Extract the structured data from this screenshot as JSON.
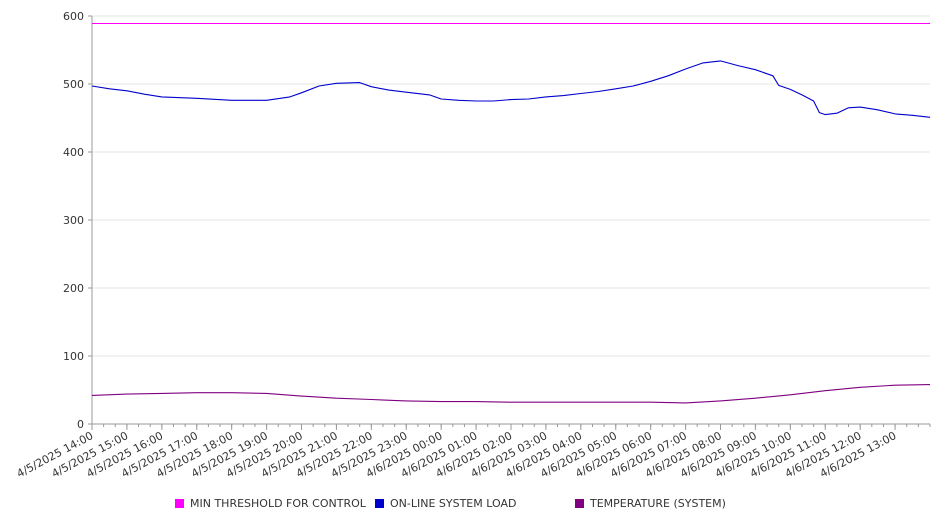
{
  "chart_data": {
    "type": "line",
    "x_tick_labels": [
      "4/5/2025 14:00",
      "4/5/2025 15:00",
      "4/5/2025 16:00",
      "4/5/2025 17:00",
      "4/5/2025 18:00",
      "4/5/2025 19:00",
      "4/5/2025 20:00",
      "4/5/2025 21:00",
      "4/5/2025 22:00",
      "4/5/2025 23:00",
      "4/6/2025 00:00",
      "4/6/2025 01:00",
      "4/6/2025 02:00",
      "4/6/2025 03:00",
      "4/6/2025 04:00",
      "4/6/2025 05:00",
      "4/6/2025 06:00",
      "4/6/2025 07:00",
      "4/6/2025 08:00",
      "4/6/2025 09:00",
      "4/6/2025 10:00",
      "4/6/2025 11:00",
      "4/6/2025 12:00",
      "4/6/2025 13:00"
    ],
    "x_range": [
      "4/5/2025 14:00",
      "4/6/2025 14:00"
    ],
    "ylim": [
      0,
      600
    ],
    "y_ticks": [
      0,
      100,
      200,
      300,
      400,
      500,
      600
    ],
    "grid": "horizontal",
    "legend_position": "bottom",
    "series": [
      {
        "name": "MIN THRESHOLD FOR CONTROL",
        "color": "#ff00ff",
        "points": [
          [
            "4/5/2025 14:00",
            589
          ],
          [
            "4/6/2025 14:00",
            589
          ]
        ]
      },
      {
        "name": "ON-LINE SYSTEM LOAD",
        "color": "#0000cc",
        "points": [
          [
            "4/5/2025 14:00",
            497
          ],
          [
            "4/5/2025 14:30",
            493
          ],
          [
            "4/5/2025 15:00",
            490
          ],
          [
            "4/5/2025 15:30",
            485
          ],
          [
            "4/5/2025 16:00",
            481
          ],
          [
            "4/5/2025 17:00",
            479
          ],
          [
            "4/5/2025 18:00",
            476
          ],
          [
            "4/5/2025 19:00",
            476
          ],
          [
            "4/5/2025 19:40",
            481
          ],
          [
            "4/5/2025 20:00",
            487
          ],
          [
            "4/5/2025 20:30",
            497
          ],
          [
            "4/5/2025 21:00",
            501
          ],
          [
            "4/5/2025 21:40",
            502
          ],
          [
            "4/5/2025 22:00",
            496
          ],
          [
            "4/5/2025 22:30",
            491
          ],
          [
            "4/5/2025 23:00",
            488
          ],
          [
            "4/5/2025 23:40",
            484
          ],
          [
            "4/6/2025 00:00",
            478
          ],
          [
            "4/6/2025 00:30",
            476
          ],
          [
            "4/6/2025 01:00",
            475
          ],
          [
            "4/6/2025 01:30",
            475
          ],
          [
            "4/6/2025 02:00",
            477
          ],
          [
            "4/6/2025 02:30",
            478
          ],
          [
            "4/6/2025 03:00",
            481
          ],
          [
            "4/6/2025 03:30",
            483
          ],
          [
            "4/6/2025 04:00",
            486
          ],
          [
            "4/6/2025 04:30",
            489
          ],
          [
            "4/6/2025 05:00",
            493
          ],
          [
            "4/6/2025 05:30",
            497
          ],
          [
            "4/6/2025 06:00",
            504
          ],
          [
            "4/6/2025 06:30",
            512
          ],
          [
            "4/6/2025 07:00",
            522
          ],
          [
            "4/6/2025 07:30",
            531
          ],
          [
            "4/6/2025 08:00",
            534
          ],
          [
            "4/6/2025 08:30",
            527
          ],
          [
            "4/6/2025 09:00",
            521
          ],
          [
            "4/6/2025 09:30",
            512
          ],
          [
            "4/6/2025 09:40",
            498
          ],
          [
            "4/6/2025 10:00",
            492
          ],
          [
            "4/6/2025 10:20",
            484
          ],
          [
            "4/6/2025 10:40",
            475
          ],
          [
            "4/6/2025 10:50",
            458
          ],
          [
            "4/6/2025 11:00",
            455
          ],
          [
            "4/6/2025 11:20",
            457
          ],
          [
            "4/6/2025 11:40",
            465
          ],
          [
            "4/6/2025 12:00",
            466
          ],
          [
            "4/6/2025 12:30",
            462
          ],
          [
            "4/6/2025 13:00",
            456
          ],
          [
            "4/6/2025 13:30",
            454
          ],
          [
            "4/6/2025 14:00",
            451
          ]
        ]
      },
      {
        "name": "TEMPERATURE (SYSTEM)",
        "color": "#800080",
        "points": [
          [
            "4/5/2025 14:00",
            42
          ],
          [
            "4/5/2025 15:00",
            44
          ],
          [
            "4/5/2025 16:00",
            45
          ],
          [
            "4/5/2025 17:00",
            46
          ],
          [
            "4/5/2025 18:00",
            46
          ],
          [
            "4/5/2025 19:00",
            45
          ],
          [
            "4/5/2025 20:00",
            41
          ],
          [
            "4/5/2025 21:00",
            38
          ],
          [
            "4/5/2025 22:00",
            36
          ],
          [
            "4/5/2025 23:00",
            34
          ],
          [
            "4/6/2025 00:00",
            33
          ],
          [
            "4/6/2025 01:00",
            33
          ],
          [
            "4/6/2025 02:00",
            32
          ],
          [
            "4/6/2025 03:00",
            32
          ],
          [
            "4/6/2025 04:00",
            32
          ],
          [
            "4/6/2025 05:00",
            32
          ],
          [
            "4/6/2025 06:00",
            32
          ],
          [
            "4/6/2025 07:00",
            31
          ],
          [
            "4/6/2025 08:00",
            34
          ],
          [
            "4/6/2025 09:00",
            38
          ],
          [
            "4/6/2025 10:00",
            43
          ],
          [
            "4/6/2025 11:00",
            49
          ],
          [
            "4/6/2025 12:00",
            54
          ],
          [
            "4/6/2025 13:00",
            57
          ],
          [
            "4/6/2025 14:00",
            58
          ]
        ]
      }
    ]
  }
}
